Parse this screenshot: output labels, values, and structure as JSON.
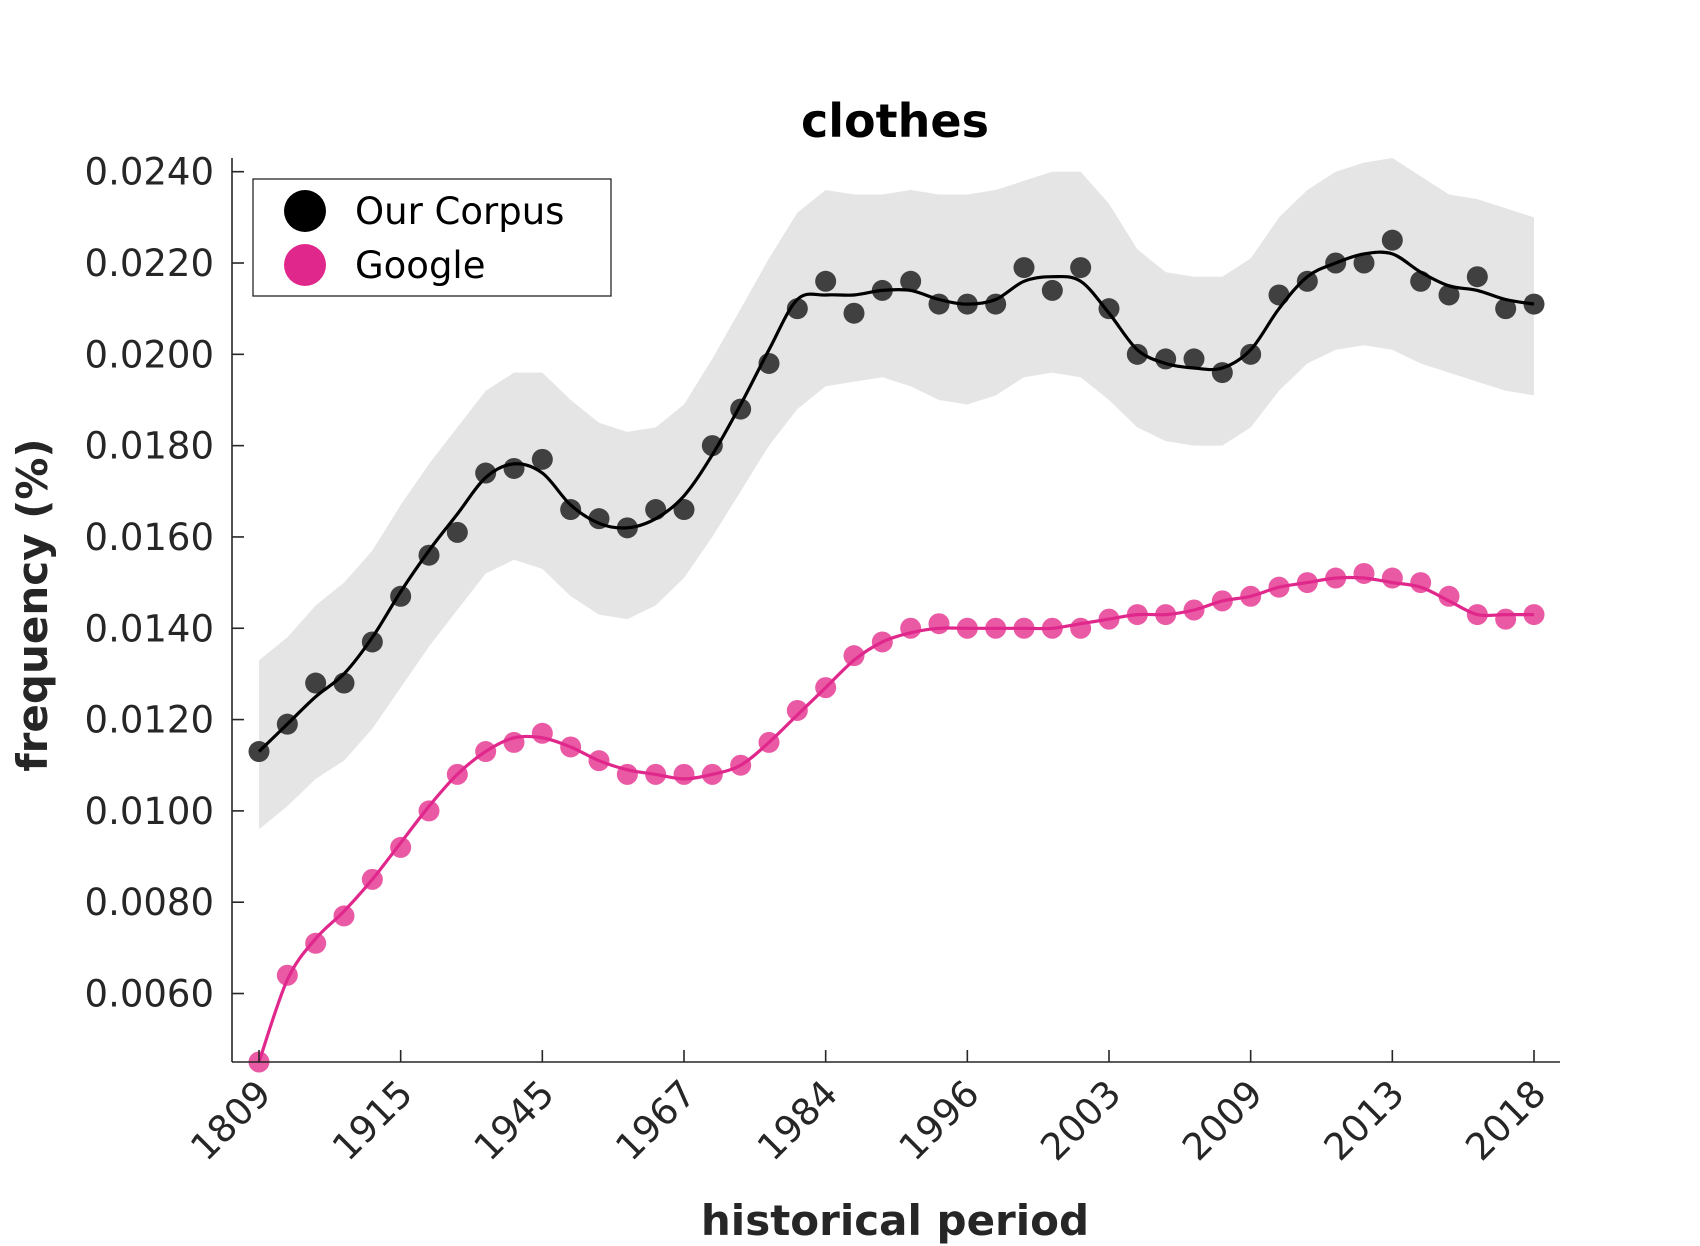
{
  "chart_data": {
    "type": "line",
    "title": "clothes",
    "xlabel": "historical period",
    "ylabel": "frequency (%)",
    "x_tick_labels": [
      "1809",
      "1915",
      "1945",
      "1967",
      "1984",
      "1996",
      "2003",
      "2009",
      "2013",
      "2018"
    ],
    "y_tick_labels": [
      "0.0060",
      "0.0080",
      "0.0100",
      "0.0120",
      "0.0140",
      "0.0160",
      "0.0180",
      "0.0200",
      "0.0220",
      "0.0240"
    ],
    "ylim": [
      0.0045,
      0.0243
    ],
    "grid": false,
    "legend_position": "top-left",
    "colors": {
      "corpus": "#000000",
      "corpus_points": "#404040",
      "band": "#e5e5e5",
      "google": "#e0288c",
      "google_points": "#e8489a"
    },
    "series": [
      {
        "name": "Our Corpus",
        "points": [
          0.0113,
          0.0119,
          0.0128,
          0.0128,
          0.0137,
          0.0147,
          0.0156,
          0.0161,
          0.0174,
          0.0175,
          0.0177,
          0.0166,
          0.0164,
          0.0162,
          0.0166,
          0.0166,
          0.018,
          0.0188,
          0.0198,
          0.021,
          0.0216,
          0.0209,
          0.0214,
          0.0216,
          0.0211,
          0.0211,
          0.0211,
          0.0219,
          0.0214,
          0.0219,
          0.021,
          0.02,
          0.0199,
          0.0199,
          0.0196,
          0.02,
          0.0213,
          0.0216,
          0.022,
          0.022,
          0.0225,
          0.0216,
          0.0213,
          0.0217,
          0.021,
          0.0211
        ],
        "smoothed": [
          0.0113,
          0.0119,
          0.0125,
          0.013,
          0.0138,
          0.0148,
          0.0157,
          0.0165,
          0.0173,
          0.0176,
          0.0174,
          0.0167,
          0.0163,
          0.0162,
          0.0164,
          0.0169,
          0.0178,
          0.0189,
          0.0201,
          0.0212,
          0.0213,
          0.0213,
          0.0214,
          0.0214,
          0.0212,
          0.0211,
          0.0212,
          0.0216,
          0.0217,
          0.0216,
          0.0209,
          0.0201,
          0.0198,
          0.0197,
          0.0197,
          0.0201,
          0.021,
          0.0217,
          0.022,
          0.0222,
          0.0222,
          0.0218,
          0.0215,
          0.0214,
          0.0212,
          0.0211
        ],
        "band_upper": [
          0.0133,
          0.0138,
          0.0145,
          0.015,
          0.0157,
          0.0167,
          0.0176,
          0.0184,
          0.0192,
          0.0196,
          0.0196,
          0.019,
          0.0185,
          0.0183,
          0.0184,
          0.0189,
          0.0199,
          0.021,
          0.0221,
          0.0231,
          0.0236,
          0.0235,
          0.0235,
          0.0236,
          0.0235,
          0.0235,
          0.0236,
          0.0238,
          0.024,
          0.024,
          0.0233,
          0.0223,
          0.0218,
          0.0217,
          0.0217,
          0.0221,
          0.023,
          0.0236,
          0.024,
          0.0242,
          0.0243,
          0.0239,
          0.0235,
          0.0234,
          0.0232,
          0.023
        ],
        "band_lower": [
          0.0096,
          0.0101,
          0.0107,
          0.0111,
          0.0118,
          0.0127,
          0.0136,
          0.0144,
          0.0152,
          0.0155,
          0.0153,
          0.0147,
          0.0143,
          0.0142,
          0.0145,
          0.0151,
          0.016,
          0.017,
          0.018,
          0.0188,
          0.0193,
          0.0194,
          0.0195,
          0.0193,
          0.019,
          0.0189,
          0.0191,
          0.0195,
          0.0196,
          0.0195,
          0.019,
          0.0184,
          0.0181,
          0.018,
          0.018,
          0.0184,
          0.0192,
          0.0198,
          0.0201,
          0.0202,
          0.0201,
          0.0198,
          0.0196,
          0.0194,
          0.0192,
          0.0191
        ]
      },
      {
        "name": "Google",
        "points": [
          0.0045,
          0.0064,
          0.0071,
          0.0077,
          0.0085,
          0.0092,
          0.01,
          0.0108,
          0.0113,
          0.0115,
          0.0117,
          0.0114,
          0.0111,
          0.0108,
          0.0108,
          0.0108,
          0.0108,
          0.011,
          0.0115,
          0.0122,
          0.0127,
          0.0134,
          0.0137,
          0.014,
          0.0141,
          0.014,
          0.014,
          0.014,
          0.014,
          0.014,
          0.0142,
          0.0143,
          0.0143,
          0.0144,
          0.0146,
          0.0147,
          0.0149,
          0.015,
          0.0151,
          0.0152,
          0.0151,
          0.015,
          0.0147,
          0.0143,
          0.0142,
          0.0143
        ],
        "smoothed": [
          0.0045,
          0.0063,
          0.0072,
          0.0078,
          0.0085,
          0.0093,
          0.0101,
          0.0108,
          0.0113,
          0.0116,
          0.0116,
          0.0114,
          0.0111,
          0.0109,
          0.0108,
          0.0107,
          0.0108,
          0.011,
          0.0115,
          0.0121,
          0.0127,
          0.0133,
          0.0137,
          0.0139,
          0.014,
          0.014,
          0.014,
          0.014,
          0.014,
          0.0141,
          0.0142,
          0.0143,
          0.0143,
          0.0144,
          0.0146,
          0.0147,
          0.0149,
          0.015,
          0.0151,
          0.0151,
          0.015,
          0.0149,
          0.0146,
          0.0143,
          0.0143,
          0.0143
        ]
      }
    ]
  }
}
